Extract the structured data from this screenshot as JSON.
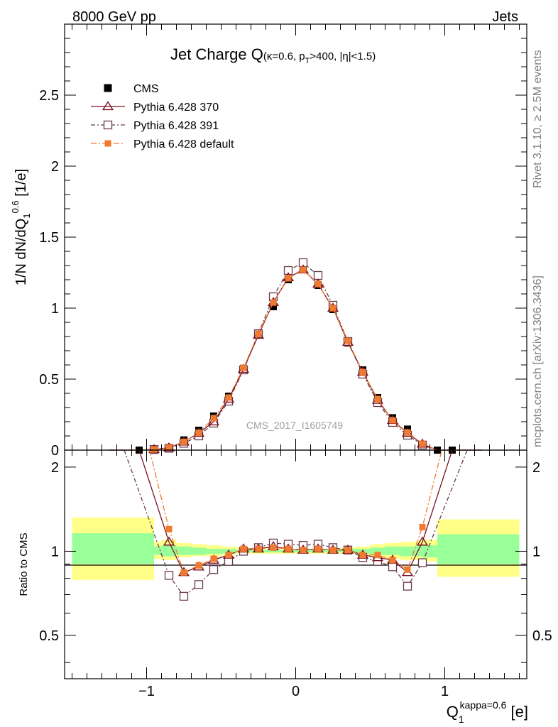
{
  "header": {
    "energy_label": "8000 GeV pp",
    "category_label": "Jets",
    "rivet_label": "Rivet 3.1.10, ≥ 2.5M events",
    "mcplots_label": "mcplots.cern.ch [arXiv:1306.3436]",
    "analysis_id": "CMS_2017_I1605749"
  },
  "main_plot": {
    "title_main": "Jet Charge Q",
    "title_sub": "(κ=0.6, p",
    "title_sub_sub": "T",
    "title_sub_end": ">400, |η|<1.5)",
    "ylabel": "1/N dN/dQ",
    "ylabel_sub": "1",
    "ylabel_sup": "0.6",
    "ylabel_unit": " [1/e]",
    "yticks": [
      "0",
      "0.5",
      "1",
      "1.5",
      "2",
      "2.5"
    ]
  },
  "ratio_plot": {
    "ylabel": "Ratio to CMS",
    "yticks": [
      "0.5",
      "1",
      "2"
    ],
    "xlabel_main": "Q",
    "xlabel_sub": "1",
    "xlabel_sup": "kappa=0.6",
    "xlabel_unit": " [e]",
    "xticks": [
      "−1",
      "0",
      "1"
    ]
  },
  "legend": [
    {
      "label": "CMS",
      "color": "#000000"
    },
    {
      "label": "Pythia 6.428 370",
      "color": "#7a1020"
    },
    {
      "label": "Pythia 6.428 391",
      "color": "#6b3a4a"
    },
    {
      "label": "Pythia 6.428 default",
      "color": "#f07a30"
    }
  ],
  "chart_data": [
    {
      "type": "scatter",
      "x": [
        -1.25,
        -1.15,
        -1.05,
        -0.95,
        -0.85,
        -0.75,
        -0.65,
        -0.55,
        -0.45,
        -0.35,
        -0.25,
        -0.15,
        -0.05,
        0.05,
        0.15,
        0.25,
        0.35,
        0.45,
        0.55,
        0.65,
        0.75,
        0.85,
        0.95,
        1.05,
        1.15,
        1.25
      ],
      "xlim": [
        -1.55,
        1.55
      ],
      "ylim": [
        0,
        3.0
      ],
      "series": [
        {
          "name": "CMS",
          "values": [
            0.0,
            0.0,
            0.0,
            0.005,
            0.015,
            0.072,
            0.14,
            0.24,
            0.38,
            0.575,
            0.81,
            1.01,
            1.2,
            1.27,
            1.16,
            0.99,
            0.755,
            0.565,
            0.37,
            0.228,
            0.148,
            0.04,
            0.0,
            0.0,
            0.0,
            0.0
          ]
        },
        {
          "name": "Pythia 6.428 370",
          "values": [
            0.0,
            0.0,
            0.0,
            0.005,
            0.017,
            0.058,
            0.12,
            0.2,
            0.36,
            0.57,
            0.81,
            1.04,
            1.215,
            1.27,
            1.17,
            1.0,
            0.76,
            0.55,
            0.352,
            0.21,
            0.12,
            0.043,
            0.0,
            0.0,
            0.0,
            0.0
          ]
        },
        {
          "name": "Pythia 6.428 391",
          "values": [
            0.0,
            0.0,
            0.0,
            0.004,
            0.013,
            0.048,
            0.1,
            0.19,
            0.345,
            0.565,
            0.82,
            1.08,
            1.265,
            1.32,
            1.23,
            1.02,
            0.765,
            0.535,
            0.335,
            0.195,
            0.105,
            0.036,
            0.0,
            0.0,
            0.0,
            0.0
          ]
        },
        {
          "name": "Pythia 6.428 default",
          "values": [
            0.0,
            0.0,
            0.0,
            0.005,
            0.018,
            0.058,
            0.123,
            0.225,
            0.37,
            0.58,
            0.82,
            1.04,
            1.21,
            1.27,
            1.17,
            1.0,
            0.77,
            0.55,
            0.36,
            0.21,
            0.125,
            0.045,
            0.0,
            0.0,
            0.0,
            0.0
          ]
        }
      ]
    },
    {
      "type": "line",
      "x": [
        -0.85,
        -0.75,
        -0.65,
        -0.55,
        -0.45,
        -0.35,
        -0.25,
        -0.15,
        -0.05,
        0.05,
        0.15,
        0.25,
        0.35,
        0.45,
        0.55,
        0.65,
        0.75,
        0.85
      ],
      "ylim": [
        0.35,
        2.3
      ],
      "reference_line": 1.0,
      "uncertainty_bands": {
        "edges": [
          -1.5,
          -0.95,
          -0.9,
          -0.8,
          -0.7,
          -0.6,
          -0.5,
          -0.4,
          -0.3,
          -0.2,
          -0.1,
          0.0,
          0.1,
          0.2,
          0.3,
          0.4,
          0.5,
          0.6,
          0.7,
          0.8,
          0.85,
          0.95,
          1.5
        ],
        "yellow_lo": [
          0.79,
          0.94,
          0.93,
          0.95,
          0.96,
          0.96,
          0.97,
          0.98,
          0.98,
          0.98,
          0.98,
          0.98,
          0.98,
          0.98,
          0.98,
          0.97,
          0.95,
          0.94,
          0.93,
          0.93,
          0.92,
          0.81
        ],
        "yellow_hi": [
          1.32,
          1.08,
          1.1,
          1.07,
          1.06,
          1.05,
          1.04,
          1.03,
          1.02,
          1.02,
          1.02,
          1.02,
          1.02,
          1.02,
          1.03,
          1.04,
          1.06,
          1.07,
          1.08,
          1.09,
          1.1,
          1.3
        ],
        "green_lo": [
          0.9,
          0.97,
          0.96,
          0.97,
          0.97,
          0.98,
          0.98,
          0.99,
          0.99,
          0.99,
          0.99,
          0.99,
          0.99,
          0.99,
          0.99,
          0.98,
          0.97,
          0.97,
          0.96,
          0.96,
          0.95,
          0.9
        ],
        "green_hi": [
          1.16,
          1.04,
          1.05,
          1.04,
          1.03,
          1.02,
          1.02,
          1.01,
          1.01,
          1.01,
          1.01,
          1.01,
          1.01,
          1.01,
          1.02,
          1.02,
          1.03,
          1.04,
          1.04,
          1.05,
          1.05,
          1.15
        ]
      },
      "series": [
        {
          "name": "Pythia 6.428 370",
          "values": [
            1.08,
            0.84,
            0.88,
            0.93,
            0.97,
            1.02,
            1.02,
            1.04,
            1.02,
            1.01,
            1.02,
            1.01,
            1.01,
            0.97,
            0.95,
            0.93,
            0.84,
            1.08
          ]
        },
        {
          "name": "Pythia 6.428 391",
          "values": [
            0.82,
            0.69,
            0.76,
            0.86,
            0.92,
            1.0,
            1.03,
            1.07,
            1.06,
            1.05,
            1.06,
            1.03,
            1.01,
            0.95,
            0.92,
            0.88,
            0.75,
            0.91
          ]
        },
        {
          "name": "Pythia 6.428 default",
          "values": [
            1.2,
            0.84,
            0.89,
            0.94,
            0.97,
            1.02,
            1.02,
            1.03,
            1.02,
            1.01,
            1.02,
            1.01,
            1.01,
            0.97,
            0.97,
            0.93,
            0.86,
            1.22
          ]
        }
      ]
    }
  ]
}
